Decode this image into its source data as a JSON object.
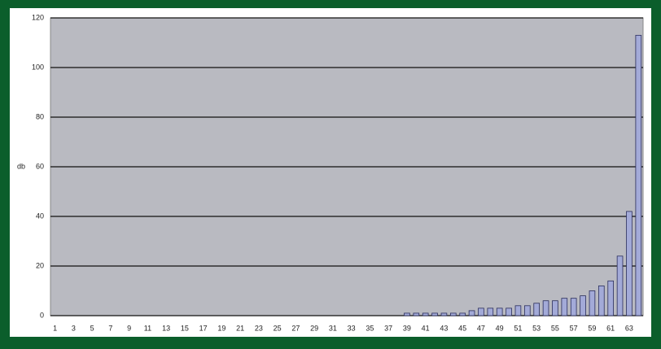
{
  "chart_data": {
    "type": "bar",
    "ylabel": "db",
    "categories": [
      "1",
      null,
      "3",
      null,
      "5",
      null,
      "7",
      null,
      "9",
      null,
      "11",
      null,
      "13",
      null,
      "15",
      null,
      "17",
      null,
      "19",
      null,
      "21",
      null,
      "23",
      null,
      "25",
      null,
      "27",
      null,
      "29",
      null,
      "31",
      null,
      "33",
      null,
      "35",
      null,
      "37",
      null,
      "39",
      null,
      "41",
      null,
      "43",
      null,
      "45",
      null,
      "47",
      null,
      "49",
      null,
      "51",
      null,
      "53",
      null,
      "55",
      null,
      "57",
      null,
      "59",
      null,
      "61",
      null,
      "63",
      null
    ],
    "values": [
      0,
      0,
      0,
      0,
      0,
      0,
      0,
      0,
      0,
      0,
      0,
      0,
      0,
      0,
      0,
      0,
      0,
      0,
      0,
      0,
      0,
      0,
      0,
      0,
      0,
      0,
      0,
      0,
      0,
      0,
      0,
      0,
      0,
      0,
      0,
      0,
      0,
      0,
      1,
      1,
      1,
      1,
      1,
      1,
      1,
      2,
      3,
      3,
      3,
      3,
      4,
      4,
      5,
      6,
      6,
      7,
      7,
      8,
      10,
      12,
      14,
      24,
      42,
      113
    ],
    "color": "#a3aad8",
    "ylim": [
      0,
      120
    ],
    "yticks": [
      0,
      20,
      40,
      60,
      80,
      100,
      120
    ],
    "grid": true
  }
}
